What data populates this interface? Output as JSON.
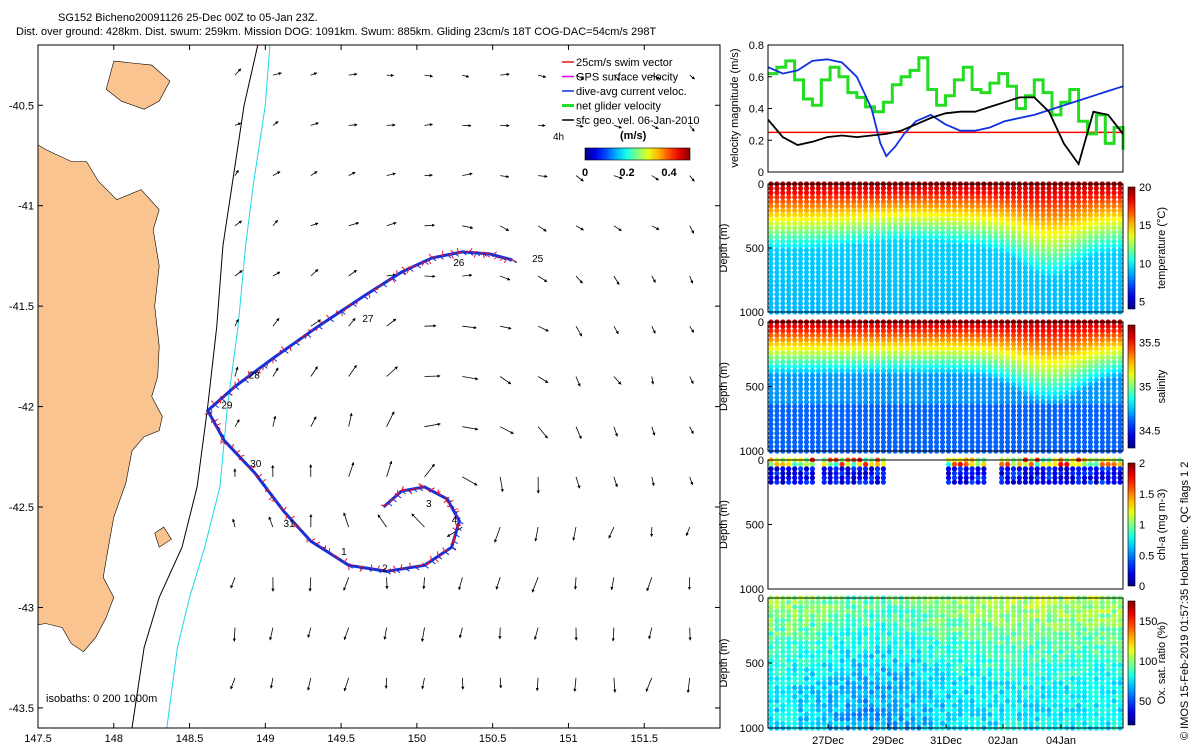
{
  "header": {
    "line1": "SG152 Bicheno20091126 25-Dec 00Z to 05-Jan 23Z.",
    "line2": "Dist. over ground: 428km. Dist. swum: 259km. Mission DOG: 1091km. Swum: 885km. Gliding 23cm/s 18T COG-DAC=54cm/s 298T"
  },
  "colors": {
    "land": "#F9C48F",
    "swim": "#E8141E",
    "gps": "#E000E0",
    "dac": "#1030E0",
    "net": "#22DD22",
    "isobath200": "#20D8E8",
    "isobath1000": "#000000",
    "ref_line": "#FF0000"
  },
  "chart_data": [
    {
      "id": "map",
      "type": "scatter",
      "title": "",
      "xlabel": "",
      "ylabel": "",
      "xlim": [
        147.5,
        152.0
      ],
      "ylim": [
        -43.6,
        -40.2
      ],
      "xticks": [
        147.5,
        148,
        148.5,
        149,
        149.5,
        150,
        150.5,
        151,
        151.5
      ],
      "xtick_labels": [
        "147.5",
        "148",
        "148.5",
        "149",
        "149.5",
        "150",
        "150.5",
        "151",
        "151.5"
      ],
      "yticks": [
        -40.5,
        -41,
        -41.5,
        -42,
        -42.5,
        -43,
        -43.5
      ],
      "ytick_labels": [
        "-40.5",
        "-41",
        "-41.5",
        "-42",
        "-42.5",
        "-43",
        "-43.5"
      ],
      "legend": [
        "25cm/s swim vector",
        "GPS surface velocity",
        "dive-avg current veloc.",
        "net glider velocity",
        "sfc geo. vel. 06-Jan-2010"
      ],
      "colorbar": {
        "label": "(m/s)",
        "ticks": [
          "0",
          "0.2",
          "0.4"
        ],
        "range": [
          0,
          0.5
        ]
      },
      "track_day_labels": [
        {
          "label": "25",
          "lon": 150.76,
          "lat": -41.28
        },
        {
          "label": "26",
          "lon": 150.24,
          "lat": -41.3
        },
        {
          "label": "27",
          "lon": 149.64,
          "lat": -41.58
        },
        {
          "label": "28",
          "lon": 148.89,
          "lat": -41.86
        },
        {
          "label": "29",
          "lon": 148.71,
          "lat": -42.01
        },
        {
          "label": "30",
          "lon": 148.9,
          "lat": -42.3
        },
        {
          "label": "31",
          "lon": 149.12,
          "lat": -42.6
        },
        {
          "label": "1",
          "lon": 149.5,
          "lat": -42.74
        },
        {
          "label": "2",
          "lon": 149.77,
          "lat": -42.82
        },
        {
          "label": "3",
          "lon": 150.06,
          "lat": -42.5
        },
        {
          "label": "4",
          "lon": 150.23,
          "lat": -42.58
        }
      ],
      "annotation_4h": "4h",
      "isobaths_label": "isobaths: 0   200   1000m",
      "track": [
        [
          150.63,
          -41.27
        ],
        [
          150.48,
          -41.24
        ],
        [
          150.3,
          -41.23
        ],
        [
          150.1,
          -41.26
        ],
        [
          149.9,
          -41.33
        ],
        [
          149.65,
          -41.45
        ],
        [
          149.35,
          -41.6
        ],
        [
          149.05,
          -41.76
        ],
        [
          148.8,
          -41.9
        ],
        [
          148.62,
          -42.02
        ],
        [
          148.73,
          -42.17
        ],
        [
          148.93,
          -42.33
        ],
        [
          149.12,
          -42.52
        ],
        [
          149.3,
          -42.67
        ],
        [
          149.55,
          -42.79
        ],
        [
          149.8,
          -42.82
        ],
        [
          150.05,
          -42.79
        ],
        [
          150.23,
          -42.7
        ],
        [
          150.28,
          -42.57
        ],
        [
          150.2,
          -42.46
        ],
        [
          150.05,
          -42.4
        ],
        [
          149.9,
          -42.42
        ],
        [
          149.78,
          -42.5
        ]
      ]
    },
    {
      "id": "velocity",
      "type": "line",
      "ylabel": "velocity magnitude (m/s)",
      "xlim": [
        0,
        12
      ],
      "ylim": [
        0,
        0.8
      ],
      "yticks": [
        0,
        0.2,
        0.4,
        0.6,
        0.8
      ],
      "ytick_labels": [
        "0",
        "0.2",
        "0.4",
        "0.6",
        "0.8"
      ],
      "ref_level": 0.25,
      "series": [
        {
          "name": "green",
          "x": [
            0,
            0.3,
            0.6,
            0.9,
            1.2,
            1.5,
            1.8,
            2.1,
            2.4,
            2.7,
            3,
            3.3,
            3.6,
            3.9,
            4.2,
            4.5,
            4.8,
            5.1,
            5.4,
            5.7,
            6,
            6.3,
            6.6,
            6.9,
            7.2,
            7.5,
            7.8,
            8.1,
            8.4,
            8.7,
            9,
            9.3,
            9.6,
            9.9,
            10.2,
            10.5,
            10.8,
            11.1,
            11.4,
            11.7,
            12
          ],
          "values": [
            0.62,
            0.66,
            0.7,
            0.58,
            0.46,
            0.42,
            0.58,
            0.66,
            0.6,
            0.5,
            0.47,
            0.41,
            0.38,
            0.44,
            0.55,
            0.6,
            0.64,
            0.72,
            0.52,
            0.42,
            0.48,
            0.58,
            0.66,
            0.52,
            0.5,
            0.56,
            0.62,
            0.54,
            0.4,
            0.48,
            0.58,
            0.5,
            0.36,
            0.44,
            0.52,
            0.32,
            0.24,
            0.36,
            0.18,
            0.28,
            0.14
          ]
        },
        {
          "name": "blue",
          "x": [
            0,
            0.5,
            1,
            1.5,
            2,
            2.5,
            3,
            3.5,
            3.8,
            4,
            4.3,
            4.6,
            5,
            5.5,
            6,
            6.5,
            7,
            7.5,
            8,
            8.5,
            9,
            9.5,
            10,
            10.5,
            11,
            11.5,
            12
          ],
          "values": [
            0.66,
            0.62,
            0.64,
            0.7,
            0.71,
            0.69,
            0.6,
            0.4,
            0.18,
            0.1,
            0.16,
            0.24,
            0.32,
            0.36,
            0.3,
            0.26,
            0.26,
            0.28,
            0.32,
            0.34,
            0.36,
            0.39,
            0.42,
            0.45,
            0.48,
            0.51,
            0.54
          ]
        },
        {
          "name": "black",
          "x": [
            0,
            0.5,
            1,
            1.5,
            2,
            2.5,
            3,
            3.5,
            4,
            4.5,
            5,
            5.5,
            6,
            6.5,
            7,
            7.5,
            8,
            8.5,
            9,
            9.5,
            10,
            10.5,
            11,
            11.5,
            12
          ],
          "values": [
            0.33,
            0.22,
            0.17,
            0.19,
            0.22,
            0.23,
            0.22,
            0.23,
            0.24,
            0.26,
            0.3,
            0.34,
            0.37,
            0.38,
            0.38,
            0.41,
            0.44,
            0.47,
            0.47,
            0.38,
            0.18,
            0.05,
            0.38,
            0.36,
            0.24
          ]
        }
      ]
    },
    {
      "id": "temperature",
      "type": "heatmap",
      "ylabel": "Depth (m)",
      "ylim": [
        1000,
        0
      ],
      "yticks": [
        0,
        500,
        1000
      ],
      "colorbar_label": "temperature (°C)",
      "colorbar_ticks": [
        "20",
        "15",
        "10",
        "5"
      ],
      "colorbar_range": [
        4,
        20
      ]
    },
    {
      "id": "salinity",
      "type": "heatmap",
      "ylabel": "Depth (m)",
      "ylim": [
        1000,
        0
      ],
      "yticks": [
        0,
        500,
        1000
      ],
      "colorbar_label": "salinity",
      "colorbar_ticks": [
        "35.5",
        "35",
        "34.5"
      ],
      "colorbar_range": [
        34.3,
        35.7
      ]
    },
    {
      "id": "chla",
      "type": "heatmap",
      "ylabel": "Depth (m)",
      "ylim": [
        1000,
        0
      ],
      "yticks": [
        0,
        500,
        1000
      ],
      "colorbar_label": "chl-a (mg m-3)",
      "colorbar_ticks": [
        "2",
        "1.5",
        "1",
        "0.5",
        "0"
      ],
      "colorbar_range": [
        0,
        2
      ]
    },
    {
      "id": "oxygen",
      "type": "heatmap",
      "ylabel": "Depth (m)",
      "ylim": [
        1000,
        0
      ],
      "yticks": [
        0,
        500,
        1000
      ],
      "colorbar_label": "Ox. sat. ratio (%)",
      "colorbar_ticks": [
        "150",
        "100",
        "50"
      ],
      "colorbar_range": [
        20,
        175
      ],
      "xtick_labels": [
        "27Dec",
        "29Dec",
        "31Dec",
        "02Jan",
        "04Jan"
      ]
    }
  ],
  "side_label": "© IMOS 15-Feb-2019 01:57:35 Hobart time. QC flags 1  2"
}
